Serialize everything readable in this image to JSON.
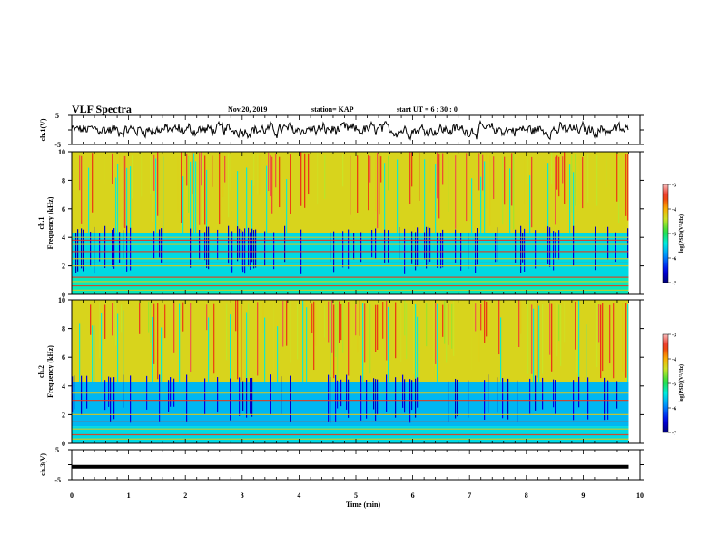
{
  "header": {
    "title": "VLF Spectra",
    "date": "Nov.20, 2019",
    "station": "station= KAP",
    "start_ut": "start  UT  =   6  : 30 : 0"
  },
  "chart_data": [
    {
      "type": "line",
      "panel": "waveform-ch1",
      "ylabel": "ch.1(V)",
      "yticks": [
        "5",
        "-5"
      ],
      "ylim": [
        -5,
        5
      ],
      "xlim": [
        0,
        10
      ],
      "series": [
        {
          "kind": "noisy-signal",
          "x_range": [
            0,
            9.8
          ],
          "approx_amplitude": 1.4
        }
      ]
    },
    {
      "type": "heatmap",
      "panel": "spectrogram-ch1",
      "ylabel": "ch.1\nFrequency (kHz)",
      "yticks": [
        "0",
        "2",
        "4",
        "6",
        "8",
        "10"
      ],
      "ylim": [
        0,
        10
      ],
      "xlim": [
        0,
        9.8
      ],
      "colorbar": {
        "label": "log(PSD)(V²/Hz)",
        "ticks": [
          "-3",
          "-4",
          "-5",
          "-6",
          "-7"
        ],
        "range": [
          -7,
          -3
        ]
      },
      "horizontal_lines_khz": [
        0.3,
        0.6,
        0.9,
        1.2,
        2.0,
        2.2,
        2.5,
        3.0,
        3.5,
        3.8,
        4.0
      ],
      "upper_band_level": -4.3,
      "lower_band_level": -5.5
    },
    {
      "type": "heatmap",
      "panel": "spectrogram-ch2",
      "ylabel": "ch.2\nFrequency (kHz)",
      "yticks": [
        "0",
        "2",
        "4",
        "6",
        "8",
        "10"
      ],
      "ylim": [
        0,
        10
      ],
      "xlim": [
        0,
        9.8
      ],
      "colorbar": {
        "label": "log(PSD)(V²/Hz)",
        "ticks": [
          "-3",
          "-4",
          "-5",
          "-6",
          "-7"
        ],
        "range": [
          -7,
          -3
        ]
      },
      "horizontal_lines_khz": [
        0.3,
        0.6,
        1.0,
        1.5,
        2.0,
        3.0,
        3.5
      ],
      "upper_band_level": -4.3,
      "lower_band_level": -5.7
    },
    {
      "type": "line",
      "panel": "waveform-ch3",
      "ylabel": "ch.3(V)",
      "yticks": [
        "5",
        "-5"
      ],
      "ylim": [
        -5,
        5
      ],
      "xlim": [
        0,
        10
      ],
      "series": [
        {
          "kind": "flat",
          "value": -0.7,
          "x_range": [
            0,
            9.8
          ]
        }
      ]
    }
  ],
  "xaxis": {
    "label": "Time (min)",
    "ticks": [
      "0",
      "1",
      "2",
      "3",
      "4",
      "5",
      "6",
      "7",
      "8",
      "9",
      "10"
    ],
    "range": [
      0,
      10
    ]
  }
}
